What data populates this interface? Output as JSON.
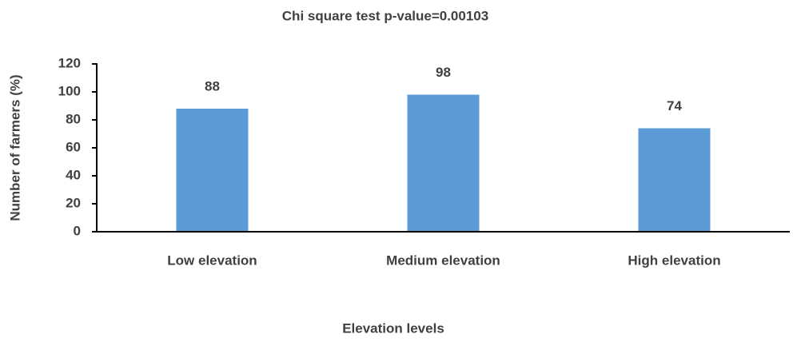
{
  "chart_data": {
    "type": "bar",
    "title": "Chi square test p-value=0.00103",
    "x_label": "Elevation levels",
    "y_label": "Number of farmers (%)",
    "categories": [
      "Low elevation",
      "Medium elevation",
      "High elevation"
    ],
    "values": [
      88,
      98,
      74
    ],
    "color": "#5b9bd5",
    "ylim": [
      0,
      120
    ],
    "yticks": [
      0,
      20,
      40,
      60,
      80,
      100,
      120
    ],
    "grid": false
  }
}
